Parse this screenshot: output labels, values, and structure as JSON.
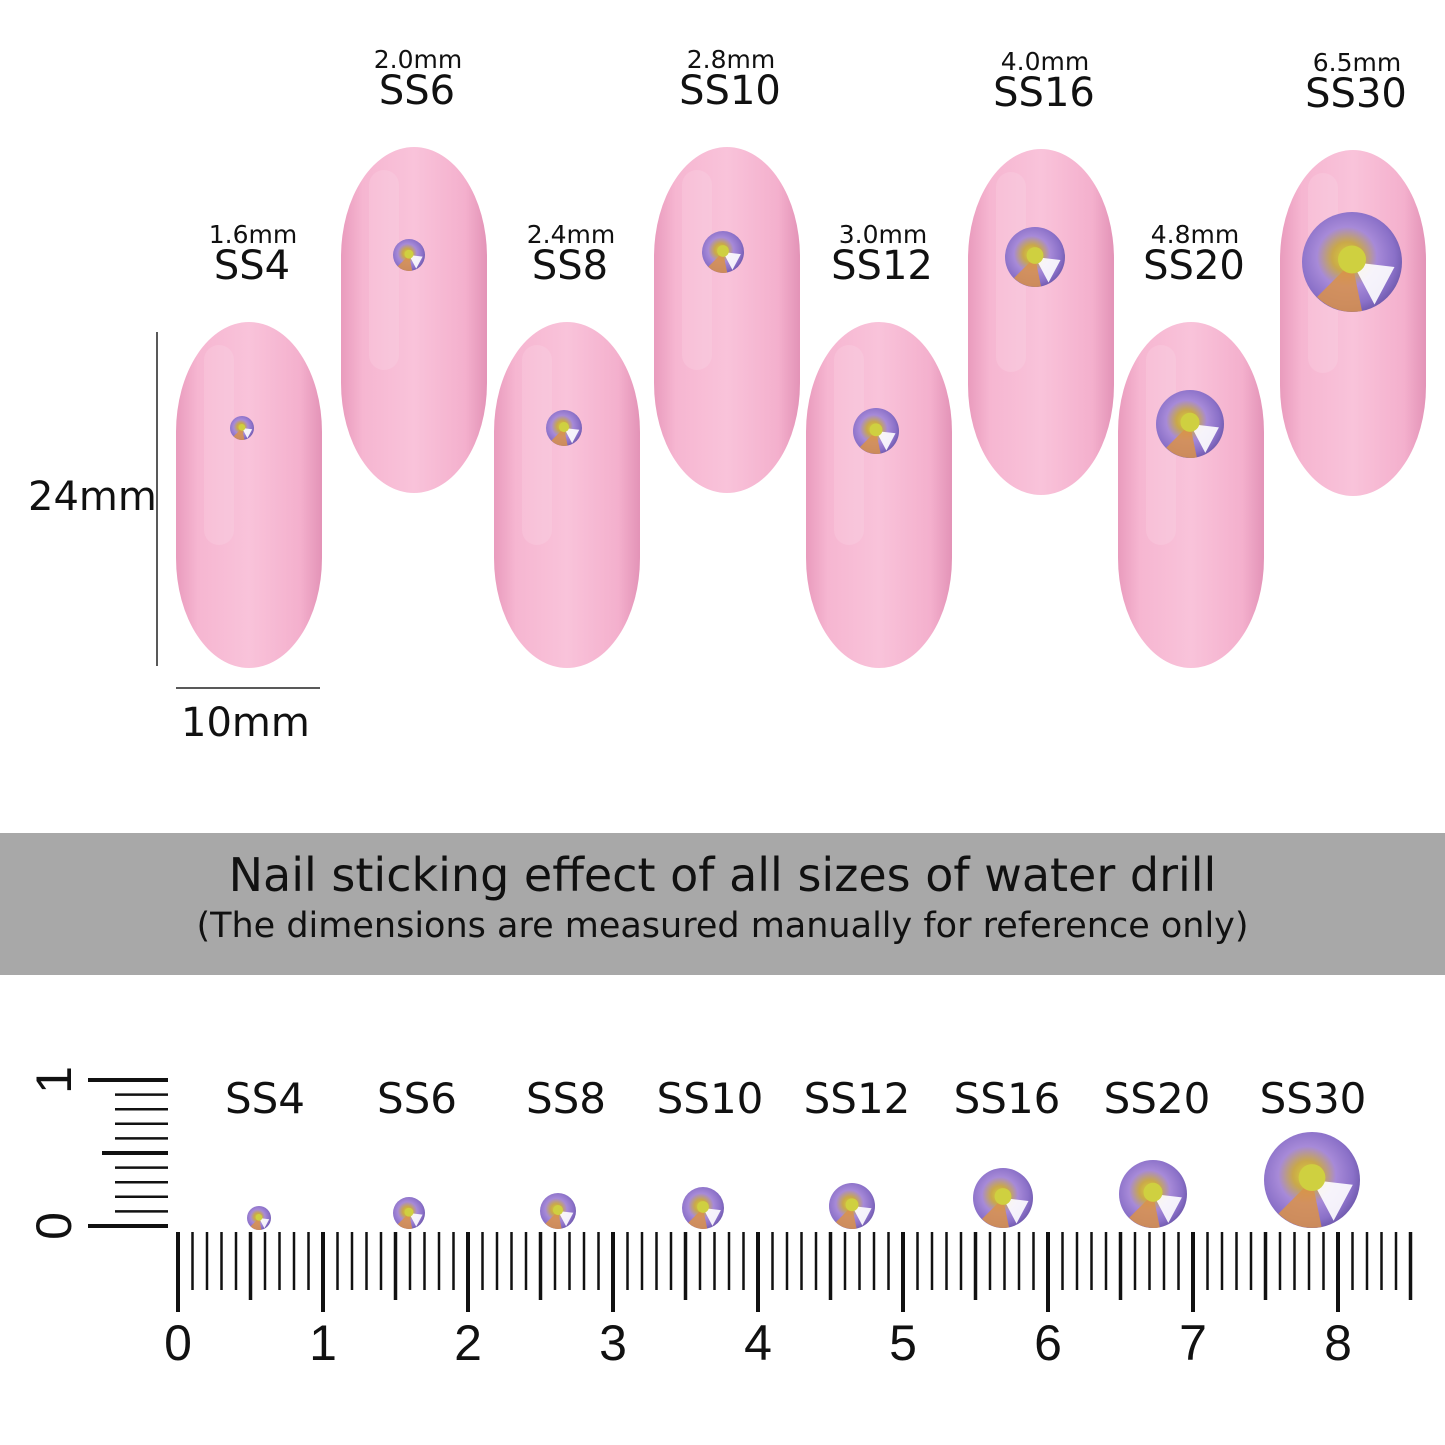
{
  "nails": [
    {
      "size": "SS4",
      "mm": "1.6mm"
    },
    {
      "size": "SS6",
      "mm": "2.0mm"
    },
    {
      "size": "SS8",
      "mm": "2.4mm"
    },
    {
      "size": "SS10",
      "mm": "2.8mm"
    },
    {
      "size": "SS12",
      "mm": "3.0mm"
    },
    {
      "size": "SS16",
      "mm": "4.0mm"
    },
    {
      "size": "SS20",
      "mm": "4.8mm"
    },
    {
      "size": "SS30",
      "mm": "6.5mm"
    }
  ],
  "dimensions": {
    "height": "24mm",
    "width": "10mm"
  },
  "banner": {
    "title": "Nail sticking effect of all sizes of water drill",
    "subtitle": "(The dimensions are measured manually for reference only)"
  },
  "ruler": {
    "labels": [
      "SS4",
      "SS6",
      "SS8",
      "SS10",
      "SS12",
      "SS16",
      "SS20",
      "SS30"
    ],
    "numbers": [
      "0",
      "1",
      "2",
      "3",
      "4",
      "5",
      "6",
      "7",
      "8"
    ],
    "vertical_numbers": [
      "0",
      "1"
    ]
  },
  "colors": {
    "nail": "#f7b8d2",
    "banner": "#a8a8a8",
    "gem": "#9a7fd0"
  }
}
